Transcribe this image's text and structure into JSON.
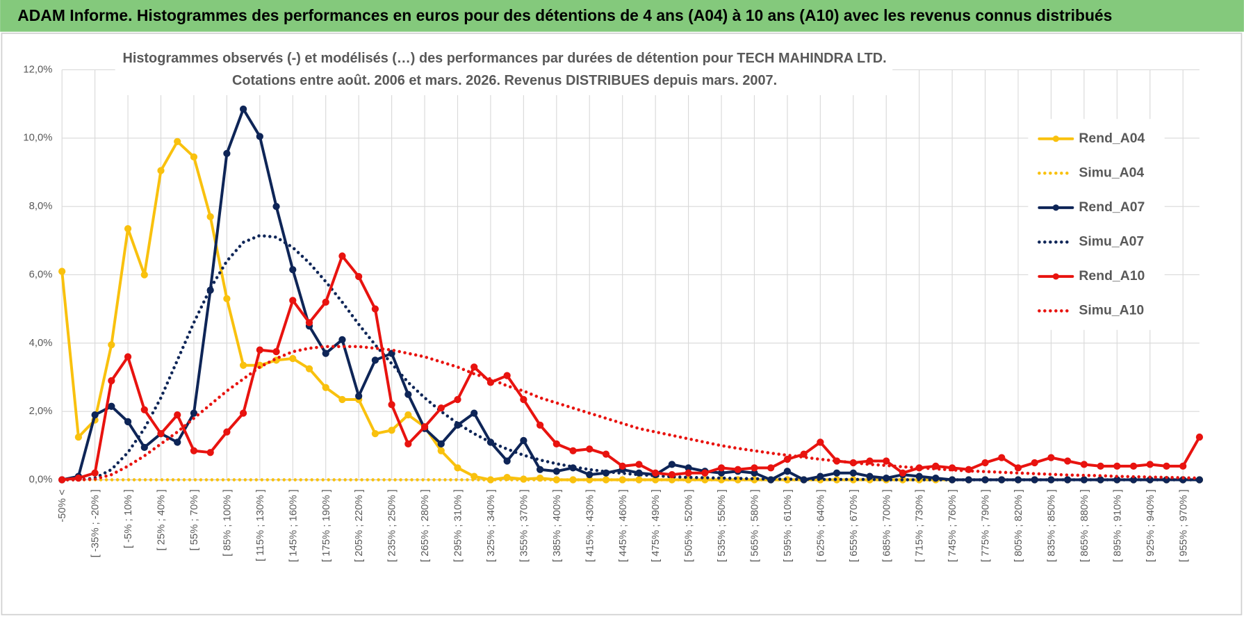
{
  "header": {
    "title": "ADAM Informe. Histogrammes des performances en euros pour des détentions de 4 ans (A04) à 10 ans (A10) avec les revenus connus distribués"
  },
  "chart_data": {
    "type": "line",
    "title": "Histogrammes observés (-) et modélisés (…) des performances par durées de détention pour TECH MAHINDRA LTD.",
    "subtitle": "Cotations entre août. 2006 et mars. 2026. Revenus DISTRIBUES depuis mars. 2007.",
    "categories": [
      "-50% <",
      null,
      "[ -35% ; -20% ]",
      null,
      "[ -5% ; 10% ]",
      null,
      "[ 25% ; 40% ]",
      null,
      "[ 55% ; 70% ]",
      null,
      "[ 85% ; 100% ]",
      null,
      "[ 115% ; 130% ]",
      null,
      "[ 145% ; 160% ]",
      null,
      "[ 175% ; 190% ]",
      null,
      "[ 205% ; 220% ]",
      null,
      "[ 235% ; 250% ]",
      null,
      "[ 265% ; 280% ]",
      null,
      "[ 295% ; 310% ]",
      null,
      "[ 325% ; 340% ]",
      null,
      "[ 355% ; 370% ]",
      null,
      "[ 385% ; 400% ]",
      null,
      "[ 415% ; 430% ]",
      null,
      "[ 445% ; 460% ]",
      null,
      "[ 475% ; 490% ]",
      null,
      "[ 505% ; 520% ]",
      null,
      "[ 535% ; 550% ]",
      null,
      "[ 565% ; 580% ]",
      null,
      "[ 595% ; 610% ]",
      null,
      "[ 625% ; 640% ]",
      null,
      "[ 655% ; 670% ]",
      null,
      "[ 685% ; 700% ]",
      null,
      "[ 715% ; 730% ]",
      null,
      "[ 745% ; 760% ]",
      null,
      "[ 775% ; 790% ]",
      null,
      "[ 805% ; 820% ]",
      null,
      "[ 835% ; 850% ]",
      null,
      "[ 865% ; 880% ]",
      null,
      "[ 895% ; 910% ]",
      null,
      "[ 925% ; 940% ]",
      null,
      "[ 955% ; 970% ]",
      null
    ],
    "series": [
      {
        "name": "Rend_A04",
        "color": "#f9c10e",
        "line_style": "solid",
        "marker": true,
        "values": [
          6.1,
          1.25,
          1.75,
          3.95,
          7.35,
          6.0,
          9.05,
          9.9,
          9.45,
          7.7,
          5.3,
          3.35,
          3.35,
          3.5,
          3.55,
          3.25,
          2.7,
          2.35,
          2.35,
          1.35,
          1.45,
          1.9,
          1.55,
          0.85,
          0.35,
          0.1,
          0,
          0.07,
          0.02,
          0.05,
          0,
          0,
          0,
          0,
          0,
          0,
          0,
          0,
          0,
          0,
          0,
          0,
          0,
          0,
          0,
          0,
          0,
          0,
          0,
          0,
          0,
          0,
          0,
          0,
          0,
          0,
          0,
          0,
          0,
          0,
          0,
          0,
          0,
          0,
          0,
          0,
          0,
          0,
          0,
          0
        ]
      },
      {
        "name": "Simu_A04",
        "color": "#f9c10e",
        "line_style": "dotted",
        "marker": false,
        "values": [
          0,
          0,
          0,
          0,
          0,
          0,
          0,
          0,
          0,
          0,
          0,
          0,
          0,
          0,
          0,
          0,
          0,
          0,
          0,
          0,
          0,
          0,
          0,
          0,
          0,
          0,
          0,
          0,
          0,
          0,
          0,
          0,
          0,
          0,
          0,
          0,
          0,
          0,
          0,
          0,
          0,
          0,
          0,
          0,
          0,
          0,
          0,
          0,
          0,
          0,
          0,
          0,
          0,
          0,
          0,
          null,
          null,
          null,
          null,
          null,
          null,
          null,
          null,
          null,
          null,
          null,
          null,
          null,
          null,
          null
        ]
      },
      {
        "name": "Rend_A07",
        "color": "#0e2557",
        "line_style": "solid",
        "marker": true,
        "values": [
          0,
          0.1,
          1.9,
          2.15,
          1.7,
          0.95,
          1.35,
          1.1,
          1.95,
          5.55,
          9.55,
          10.85,
          10.05,
          8.0,
          6.15,
          4.5,
          3.7,
          4.1,
          2.45,
          3.5,
          3.7,
          2.5,
          1.5,
          1.05,
          1.6,
          1.95,
          1.1,
          0.55,
          1.15,
          0.3,
          0.25,
          0.35,
          0.15,
          0.2,
          0.3,
          0.2,
          0.15,
          0.45,
          0.35,
          0.25,
          0.2,
          0.25,
          0.2,
          0,
          0.25,
          0,
          0.1,
          0.2,
          0.2,
          0.1,
          0.05,
          0.15,
          0.1,
          0.05,
          0,
          0,
          0,
          0,
          0,
          0,
          0,
          0,
          0,
          0,
          0,
          0,
          0,
          0,
          0,
          0
        ]
      },
      {
        "name": "Simu_A07",
        "color": "#0e2557",
        "line_style": "dotted",
        "marker": false,
        "values": [
          0,
          0,
          0.05,
          0.3,
          0.8,
          1.5,
          2.4,
          3.5,
          4.6,
          5.6,
          6.4,
          6.95,
          7.15,
          7.1,
          6.8,
          6.35,
          5.8,
          5.2,
          4.55,
          3.95,
          3.4,
          2.85,
          2.4,
          2.0,
          1.65,
          1.35,
          1.1,
          0.9,
          0.72,
          0.58,
          0.47,
          0.38,
          0.3,
          0.24,
          0.19,
          0.15,
          0.12,
          0.09,
          0.07,
          0.06,
          0.05,
          0.04,
          0.03,
          0.02,
          0.02,
          0.01,
          0.01,
          0.01,
          0.01,
          0.01,
          0,
          0,
          0,
          0,
          0,
          0,
          0,
          0,
          0,
          0,
          0,
          0,
          0,
          0,
          0,
          0,
          0,
          0,
          0,
          0
        ]
      },
      {
        "name": "Rend_A10",
        "color": "#e8130f",
        "line_style": "solid",
        "marker": true,
        "values": [
          0,
          0.05,
          0.2,
          2.9,
          3.6,
          2.05,
          1.35,
          1.9,
          0.85,
          0.8,
          1.4,
          1.95,
          3.8,
          3.75,
          5.25,
          4.6,
          5.2,
          6.55,
          5.95,
          5.0,
          2.2,
          1.05,
          1.55,
          2.1,
          2.35,
          3.3,
          2.85,
          3.05,
          2.35,
          1.6,
          1.05,
          0.85,
          0.9,
          0.75,
          0.4,
          0.45,
          0.2,
          0.15,
          0.2,
          0.2,
          0.35,
          0.3,
          0.35,
          0.35,
          0.6,
          0.75,
          1.1,
          0.55,
          0.5,
          0.55,
          0.55,
          0.2,
          0.35,
          0.4,
          0.35,
          0.3,
          0.5,
          0.65,
          0.35,
          0.5,
          0.65,
          0.55,
          0.45,
          0.4,
          0.4,
          0.4,
          0.45,
          0.4,
          0.4,
          1.25
        ]
      },
      {
        "name": "Simu_A10",
        "color": "#e8130f",
        "line_style": "dotted",
        "marker": false,
        "values": [
          0,
          0,
          0.02,
          0.15,
          0.4,
          0.7,
          1.05,
          1.4,
          1.8,
          2.2,
          2.6,
          2.95,
          3.3,
          3.55,
          3.75,
          3.85,
          3.9,
          3.9,
          3.9,
          3.85,
          3.8,
          3.7,
          3.6,
          3.45,
          3.3,
          3.1,
          2.95,
          2.75,
          2.6,
          2.4,
          2.25,
          2.1,
          1.95,
          1.8,
          1.65,
          1.5,
          1.4,
          1.3,
          1.2,
          1.1,
          1.0,
          0.92,
          0.85,
          0.78,
          0.72,
          0.66,
          0.6,
          0.55,
          0.5,
          0.45,
          0.42,
          0.38,
          0.35,
          0.32,
          0.29,
          0.26,
          0.24,
          0.22,
          0.2,
          0.18,
          0.16,
          0.14,
          0.13,
          0.12,
          0.1,
          0.09,
          0.08,
          0.07,
          0.06,
          0.05
        ]
      }
    ],
    "ylim": [
      0,
      12
    ],
    "yticks": [
      {
        "value": 0,
        "label": "0,0%"
      },
      {
        "value": 2,
        "label": "2,0%"
      },
      {
        "value": 4,
        "label": "4,0%"
      },
      {
        "value": 6,
        "label": "6,0%"
      },
      {
        "value": 8,
        "label": "8,0%"
      },
      {
        "value": 10,
        "label": "10,0%"
      },
      {
        "value": 12,
        "label": "12,0%"
      }
    ],
    "grid": true,
    "legend": "right"
  }
}
